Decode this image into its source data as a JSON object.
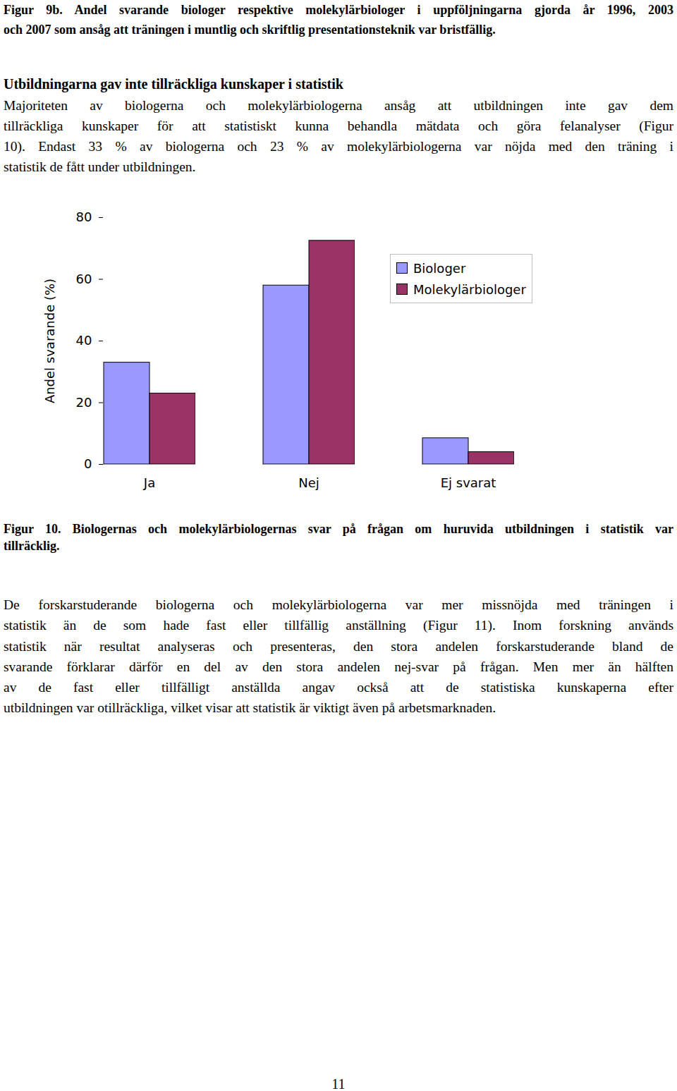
{
  "figure_9b_caption": [
    "Figur 9b. Andel svarande biologer respektive molekylärbiologer i uppföljningarna gjorda år 1996, 2003",
    "och 2007 som ansåg att träningen i muntlig och skriftlig presentationsteknik var bristfällig."
  ],
  "heading": "Utbildningarna gav inte tillräckliga kunskaper i statistik",
  "paragraph_1": [
    "Majoriteten av biologerna och molekylärbiologerna ansåg att utbildningen inte gav dem",
    "tillräckliga kunskaper för att statistiskt kunna behandla mätdata och göra felanalyser (Figur",
    "10). Endast 33 % av biologerna och 23 % av molekylärbiologerna var nöjda med den träning i",
    "statistik de fått under utbildningen."
  ],
  "chart_data": {
    "type": "bar",
    "categories": [
      "Ja",
      "Nej",
      "Ej svarat"
    ],
    "series": [
      {
        "name": "Biologer",
        "color": "#9999ff",
        "values": [
          33,
          58,
          8.5
        ]
      },
      {
        "name": "Molekylärbiologer",
        "color": "#993366",
        "values": [
          23,
          72.5,
          4
        ]
      }
    ],
    "y_label": "Andel svarande (%)",
    "ylim": [
      0,
      80
    ],
    "yticks": [
      0,
      20,
      40,
      60,
      80
    ],
    "grid": false,
    "legend": "upper right"
  },
  "figure_10_caption": [
    "Figur 10. Biologernas och molekylärbiologernas svar på frågan om huruvida utbildningen i statistik var",
    "tillräcklig."
  ],
  "paragraph_2": [
    "De forskarstuderande biologerna och molekylärbiologerna var mer missnöjda med träningen i",
    "statistik än de som hade fast eller tillfällig anställning (Figur 11). Inom forskning används",
    "statistik när resultat analyseras och presenteras, den stora andelen forskarstuderande bland de",
    "svarande förklarar därför en del av den stora andelen nej-svar på frågan. Men mer än hälften",
    "av de fast eller tillfälligt anställda angav också att de statistiska kunskaperna efter",
    "utbildningen var otillräckliga, vilket visar att statistik är viktigt även på arbetsmarknaden."
  ],
  "page_number": "11"
}
